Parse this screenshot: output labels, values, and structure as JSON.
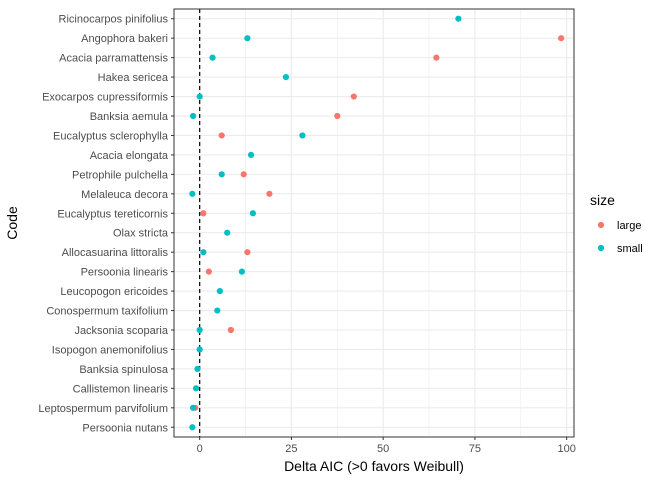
{
  "chart_data": {
    "type": "scatter",
    "xlabel": "Delta AIC (>0 favors Weibull)",
    "ylabel": "Code",
    "xlim": [
      -7,
      102
    ],
    "x_ticks": [
      0,
      25,
      50,
      75,
      100
    ],
    "x_tick_labels": [
      "0",
      "25",
      "50",
      "75",
      "100"
    ],
    "reference_line": {
      "x": 0,
      "style": "dashed",
      "color": "#000000"
    },
    "grid": true,
    "legend": {
      "title": "size",
      "position": "right"
    },
    "categories": [
      "Ricinocarpos pinifolius",
      "Angophora bakeri",
      "Acacia parramattensis",
      "Hakea sericea",
      "Exocarpos cupressiformis",
      "Banksia aemula",
      "Eucalyptus sclerophylla",
      "Acacia elongata",
      "Petrophile pulchella",
      "Melaleuca decora",
      "Eucalyptus tereticornis",
      "Olax stricta",
      "Allocasuarina littoralis",
      "Persoonia linearis",
      "Leucopogon ericoides",
      "Conospermum taxifolium",
      "Jacksonia scoparia",
      "Isopogon anemonifolius",
      "Banksia spinulosa",
      "Callistemon linearis",
      "Leptospermum parvifolium",
      "Persoonia nutans"
    ],
    "series": [
      {
        "name": "large",
        "color": "#F8766D",
        "points": [
          {
            "y": "Angophora bakeri",
            "x": 98.5
          },
          {
            "y": "Acacia parramattensis",
            "x": 64.5
          },
          {
            "y": "Exocarpos cupressiformis",
            "x": 42.0
          },
          {
            "y": "Banksia aemula",
            "x": 37.5
          },
          {
            "y": "Eucalyptus sclerophylla",
            "x": 6.0
          },
          {
            "y": "Petrophile pulchella",
            "x": 12.0
          },
          {
            "y": "Melaleuca decora",
            "x": 19.0
          },
          {
            "y": "Eucalyptus tereticornis",
            "x": 1.0
          },
          {
            "y": "Allocasuarina littoralis",
            "x": 13.0
          },
          {
            "y": "Persoonia linearis",
            "x": 2.5
          },
          {
            "y": "Jacksonia scoparia",
            "x": 8.5
          },
          {
            "y": "Leptospermum parvifolium",
            "x": -1.2
          }
        ]
      },
      {
        "name": "small",
        "color": "#00BFC4",
        "points": [
          {
            "y": "Ricinocarpos pinifolius",
            "x": 70.5
          },
          {
            "y": "Angophora bakeri",
            "x": 13.0
          },
          {
            "y": "Acacia parramattensis",
            "x": 3.5
          },
          {
            "y": "Hakea sericea",
            "x": 23.5
          },
          {
            "y": "Exocarpos cupressiformis",
            "x": 0.0
          },
          {
            "y": "Banksia aemula",
            "x": -1.8
          },
          {
            "y": "Eucalyptus sclerophylla",
            "x": 28.0
          },
          {
            "y": "Acacia elongata",
            "x": 14.0
          },
          {
            "y": "Petrophile pulchella",
            "x": 6.0
          },
          {
            "y": "Melaleuca decora",
            "x": -2.0
          },
          {
            "y": "Eucalyptus tereticornis",
            "x": 14.5
          },
          {
            "y": "Olax stricta",
            "x": 7.5
          },
          {
            "y": "Allocasuarina littoralis",
            "x": 1.0
          },
          {
            "y": "Persoonia linearis",
            "x": 11.5
          },
          {
            "y": "Leucopogon ericoides",
            "x": 5.5
          },
          {
            "y": "Conospermum taxifolium",
            "x": 4.8
          },
          {
            "y": "Jacksonia scoparia",
            "x": 0.0
          },
          {
            "y": "Isopogon anemonifolius",
            "x": 0.0
          },
          {
            "y": "Banksia spinulosa",
            "x": -0.6
          },
          {
            "y": "Callistemon linearis",
            "x": -1.0
          },
          {
            "y": "Leptospermum parvifolium",
            "x": -1.8
          },
          {
            "y": "Persoonia nutans",
            "x": -2.0
          }
        ]
      }
    ]
  }
}
